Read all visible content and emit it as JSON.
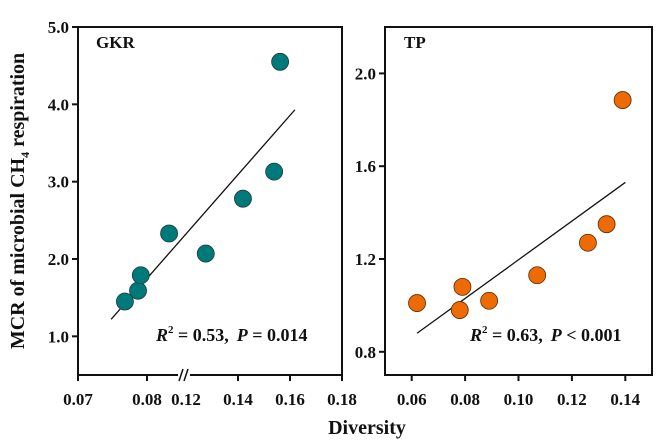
{
  "chart_data": [
    {
      "type": "scatter",
      "panel": "GKR",
      "title": "GKR",
      "xlabel": "Diversity",
      "ylabel": "MCR of microbial CH4 respiration",
      "ylabel_parts": {
        "main": "MCR of microbial CH",
        "sub": "4",
        "tail": " respiration"
      },
      "ylim": [
        0.5,
        5.0
      ],
      "yticks": [
        1.0,
        2.0,
        3.0,
        4.0,
        5.0
      ],
      "ytick_labels": [
        "1.0",
        "2.0",
        "3.0",
        "4.0",
        "5.0"
      ],
      "x_axis_broken": true,
      "x_segments": [
        {
          "range": [
            0.07,
            0.08
          ],
          "ticks": [
            0.07,
            0.08
          ],
          "labels": [
            "0.07",
            "0.08"
          ]
        },
        {
          "range": [
            0.12,
            0.18
          ],
          "ticks": [
            0.12,
            0.14,
            0.16,
            0.18
          ],
          "labels": [
            "0.12",
            "0.14",
            "0.16",
            "0.18"
          ]
        }
      ],
      "point_color": "#00797A",
      "points": [
        {
          "x": 0.0768,
          "y": 1.45
        },
        {
          "x": 0.0787,
          "y": 1.59
        },
        {
          "x": 0.0791,
          "y": 1.79
        },
        {
          "x": 0.0832,
          "y": 2.33
        },
        {
          "x": 0.1276,
          "y": 2.07
        },
        {
          "x": 0.1419,
          "y": 2.78
        },
        {
          "x": 0.1539,
          "y": 3.13
        },
        {
          "x": 0.1562,
          "y": 4.55
        }
      ],
      "fit_line": {
        "x0": 0.0748,
        "y0": 1.22,
        "x1": 0.1619,
        "y1": 3.93
      },
      "annotation": {
        "r_label": "R",
        "r_sup": "2",
        "r_value": " = 0.53,",
        "p_label": "P",
        "p_value": " = 0.014"
      }
    },
    {
      "type": "scatter",
      "panel": "TP",
      "title": "TP",
      "xlabel": "Diversity",
      "ylim": [
        0.7,
        2.2
      ],
      "yticks": [
        0.8,
        1.2,
        1.6,
        2.0
      ],
      "ytick_labels": [
        "0.8",
        "1.2",
        "1.6",
        "2.0"
      ],
      "xlim": [
        0.05,
        0.15
      ],
      "xticks": [
        0.06,
        0.08,
        0.1,
        0.12,
        0.14
      ],
      "xtick_labels": [
        "0.06",
        "0.08",
        "0.10",
        "0.12",
        "0.14"
      ],
      "point_color": "#EE6A05",
      "points": [
        {
          "x": 0.062,
          "y": 1.01
        },
        {
          "x": 0.079,
          "y": 1.08
        },
        {
          "x": 0.078,
          "y": 0.98
        },
        {
          "x": 0.089,
          "y": 1.02
        },
        {
          "x": 0.107,
          "y": 1.13
        },
        {
          "x": 0.126,
          "y": 1.27
        },
        {
          "x": 0.133,
          "y": 1.35
        },
        {
          "x": 0.139,
          "y": 1.885
        }
      ],
      "fit_line": {
        "x0": 0.062,
        "y0": 0.88,
        "x1": 0.14,
        "y1": 1.53
      },
      "annotation": {
        "r_label": "R",
        "r_sup": "2",
        "r_value": " = 0.63,",
        "p_label": "P",
        "p_value": " < 0.001"
      }
    }
  ],
  "shared_xlabel": "Diversity"
}
